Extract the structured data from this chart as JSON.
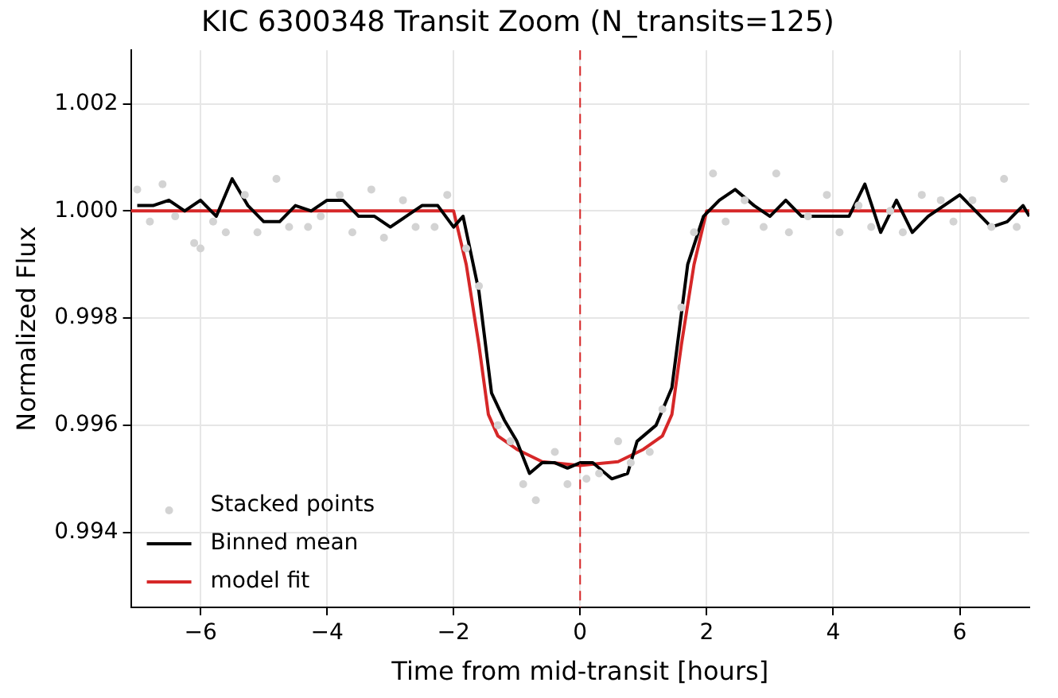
{
  "chart_data": {
    "type": "line",
    "title": "KIC 6300348 Transit Zoom (N_transits=125)",
    "xlabel": "Time from mid-transit [hours]",
    "ylabel": "Normalized Flux",
    "xlim": [
      -7.1,
      7.1
    ],
    "ylim": [
      0.9926,
      1.003
    ],
    "xticks": [
      {
        "value": -6,
        "label": "−6"
      },
      {
        "value": -4,
        "label": "−4"
      },
      {
        "value": -2,
        "label": "−2"
      },
      0,
      2,
      4,
      6
    ],
    "yticks": [
      {
        "value": 0.994,
        "label": "0.994"
      },
      {
        "value": 0.996,
        "label": "0.996"
      },
      {
        "value": 0.998,
        "label": "0.998"
      },
      {
        "value": 1.0,
        "label": "1.000"
      },
      {
        "value": 1.002,
        "label": "1.002"
      }
    ],
    "grid": true,
    "legend": "bottom left",
    "marker": "none",
    "ref_lines": [
      {
        "axis": "x",
        "value": 0,
        "label": null,
        "color": "#d62728",
        "line_style": "dashed"
      }
    ],
    "series": [
      {
        "name": "Stacked points",
        "type": "scatter",
        "marker": "circle",
        "color": "#d3d3d3",
        "x": [
          -7.0,
          -6.8,
          -6.6,
          -6.4,
          -6.1,
          -6.0,
          -5.8,
          -5.6,
          -5.3,
          -5.1,
          -4.8,
          -4.6,
          -4.3,
          -4.1,
          -3.8,
          -3.6,
          -3.3,
          -3.1,
          -2.8,
          -2.6,
          -2.3,
          -2.1,
          -1.8,
          -1.6,
          -1.3,
          -1.1,
          -0.9,
          -0.7,
          -0.4,
          -0.2,
          0.1,
          0.3,
          0.6,
          0.8,
          1.1,
          1.3,
          1.6,
          1.8,
          2.1,
          2.3,
          2.6,
          2.9,
          3.1,
          3.3,
          3.6,
          3.9,
          4.1,
          4.4,
          4.6,
          4.9,
          5.1,
          5.4,
          5.7,
          5.9,
          6.2,
          6.5,
          6.7,
          6.9
        ],
        "values": [
          1.0004,
          0.9998,
          1.0005,
          0.9999,
          0.9994,
          0.9993,
          0.9998,
          0.9996,
          1.0003,
          0.9996,
          1.0006,
          0.9997,
          0.9997,
          0.9999,
          1.0003,
          0.9996,
          1.0004,
          0.9995,
          1.0002,
          0.9997,
          0.9997,
          1.0003,
          0.9993,
          0.9986,
          0.996,
          0.9957,
          0.9949,
          0.9946,
          0.9955,
          0.9949,
          0.995,
          0.9951,
          0.9957,
          0.9953,
          0.9955,
          0.9963,
          0.9982,
          0.9996,
          1.0007,
          0.9998,
          1.0002,
          0.9997,
          1.0007,
          0.9996,
          0.9999,
          1.0003,
          0.9996,
          1.0001,
          0.9997,
          1.0,
          0.9996,
          1.0003,
          1.0002,
          0.9998,
          1.0002,
          0.9997,
          1.0006,
          0.9997
        ]
      },
      {
        "name": "Binned mean",
        "type": "line",
        "color": "#000000",
        "x": [
          -7.0,
          -6.75,
          -6.5,
          -6.25,
          -6.0,
          -5.75,
          -5.5,
          -5.25,
          -5.0,
          -4.75,
          -4.5,
          -4.25,
          -4.0,
          -3.75,
          -3.5,
          -3.25,
          -3.0,
          -2.75,
          -2.5,
          -2.25,
          -2.0,
          -1.85,
          -1.6,
          -1.4,
          -1.2,
          -1.0,
          -0.8,
          -0.6,
          -0.4,
          -0.2,
          0.0,
          0.2,
          0.5,
          0.75,
          0.9,
          1.2,
          1.45,
          1.7,
          1.95,
          2.2,
          2.45,
          2.75,
          3.0,
          3.25,
          3.5,
          3.75,
          4.25,
          4.5,
          4.75,
          5.0,
          5.25,
          5.5,
          6.0,
          6.5,
          6.75,
          7.0,
          7.1
        ],
        "values": [
          1.0001,
          1.0001,
          1.0002,
          1.0,
          1.0002,
          0.9999,
          1.0006,
          1.0001,
          0.9998,
          0.9998,
          1.0001,
          1.0,
          1.0002,
          1.0002,
          0.9999,
          0.9999,
          0.9997,
          0.9999,
          1.0001,
          1.0001,
          0.9997,
          0.9999,
          0.9985,
          0.9966,
          0.9961,
          0.9957,
          0.9951,
          0.9953,
          0.9953,
          0.9952,
          0.9953,
          0.9953,
          0.995,
          0.9951,
          0.9957,
          0.996,
          0.9967,
          0.999,
          0.9999,
          1.0002,
          1.0004,
          1.0001,
          0.9999,
          1.0002,
          0.9999,
          0.9999,
          0.9999,
          1.0005,
          0.9996,
          1.0002,
          0.9996,
          0.9999,
          1.0003,
          0.9997,
          0.9998,
          1.0001,
          0.9999
        ]
      },
      {
        "name": "model fit",
        "type": "line",
        "color": "#d62728",
        "x": [
          -7.1,
          -2.0,
          -1.8,
          -1.6,
          -1.45,
          -1.3,
          -1.0,
          -0.6,
          0.0,
          0.6,
          1.0,
          1.3,
          1.45,
          1.6,
          1.8,
          2.0,
          7.1
        ],
        "values": [
          1.0,
          1.0,
          0.999,
          0.9975,
          0.9962,
          0.9958,
          0.99555,
          0.99532,
          0.99525,
          0.99532,
          0.99555,
          0.9958,
          0.9962,
          0.9975,
          0.999,
          1.0,
          1.0
        ]
      }
    ]
  }
}
